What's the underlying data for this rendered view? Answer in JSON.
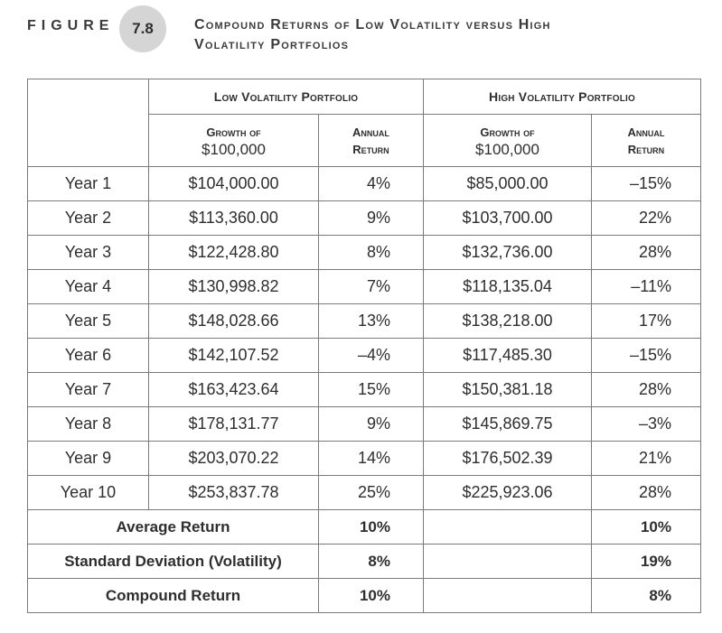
{
  "figure": {
    "label": "FIGURE",
    "number": "7.8",
    "title_line1": "Compound Returns of Low Volatility versus High",
    "title_line2": "Volatility Portfolios"
  },
  "table": {
    "low_header": "Low Volatility Portfolio",
    "high_header": "High Volatility Portfolio",
    "growth_top": "Growth of",
    "growth_bottom": "$100,000",
    "annual_top": "Annual",
    "annual_bottom": "Return",
    "rows": [
      {
        "year": "Year 1",
        "low_growth": "$104,000.00",
        "low_return": "4%",
        "high_growth": "$85,000.00",
        "high_return": "–15%"
      },
      {
        "year": "Year 2",
        "low_growth": "$113,360.00",
        "low_return": "9%",
        "high_growth": "$103,700.00",
        "high_return": "22%"
      },
      {
        "year": "Year 3",
        "low_growth": "$122,428.80",
        "low_return": "8%",
        "high_growth": "$132,736.00",
        "high_return": "28%"
      },
      {
        "year": "Year 4",
        "low_growth": "$130,998.82",
        "low_return": "7%",
        "high_growth": "$118,135.04",
        "high_return": "–11%"
      },
      {
        "year": "Year 5",
        "low_growth": "$148,028.66",
        "low_return": "13%",
        "high_growth": "$138,218.00",
        "high_return": "17%"
      },
      {
        "year": "Year 6",
        "low_growth": "$142,107.52",
        "low_return": "–4%",
        "high_growth": "$117,485.30",
        "high_return": "–15%"
      },
      {
        "year": "Year 7",
        "low_growth": "$163,423.64",
        "low_return": "15%",
        "high_growth": "$150,381.18",
        "high_return": "28%"
      },
      {
        "year": "Year 8",
        "low_growth": "$178,131.77",
        "low_return": "9%",
        "high_growth": "$145,869.75",
        "high_return": "–3%"
      },
      {
        "year": "Year 9",
        "low_growth": "$203,070.22",
        "low_return": "14%",
        "high_growth": "$176,502.39",
        "high_return": "21%"
      },
      {
        "year": "Year 10",
        "low_growth": "$253,837.78",
        "low_return": "25%",
        "high_growth": "$225,923.06",
        "high_return": "28%"
      }
    ],
    "summary": [
      {
        "label": "Average Return",
        "low": "10%",
        "high": "10%"
      },
      {
        "label": "Standard Deviation (Volatility)",
        "low": "8%",
        "high": "19%"
      },
      {
        "label": "Compound Return",
        "low": "10%",
        "high": "8%"
      }
    ]
  }
}
